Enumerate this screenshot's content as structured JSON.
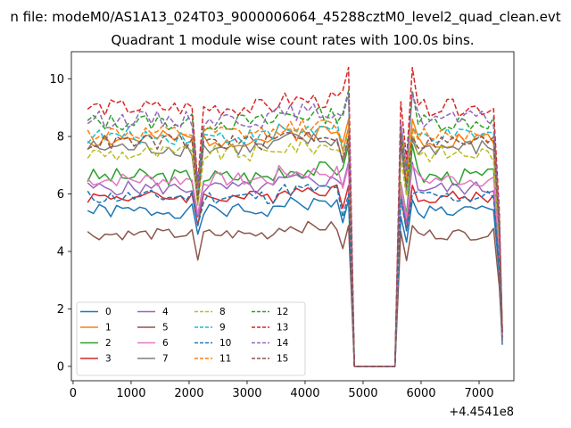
{
  "chart_data": {
    "type": "line",
    "suptitle": "n file: modeM0/AS1A13_024T03_9000006064_45288cztM0_level2_quad_clean.evt",
    "title": "Quadrant 1 module wise count rates with 100.0s bins.",
    "xlabel": "",
    "ylabel": "",
    "offset_text": "+4.4541e8",
    "xlim": [
      -30,
      7600
    ],
    "ylim": [
      -0.5,
      10.95
    ],
    "xticks": [
      0,
      1000,
      2000,
      3000,
      4000,
      5000,
      6000,
      7000
    ],
    "yticks": [
      0,
      2,
      4,
      6,
      8,
      10
    ],
    "grid": false,
    "legend": {
      "placement": "lower-left",
      "columns": 4
    },
    "x": [
      250,
      350,
      450,
      550,
      650,
      750,
      850,
      950,
      1050,
      1150,
      1250,
      1350,
      1450,
      1550,
      1650,
      1750,
      1850,
      1950,
      2050,
      2150,
      2250,
      2350,
      2450,
      2550,
      2650,
      2750,
      2850,
      2950,
      3050,
      3150,
      3250,
      3350,
      3450,
      3550,
      3650,
      3750,
      3850,
      3950,
      4050,
      4150,
      4250,
      4350,
      4450,
      4550,
      4650,
      4750,
      4850,
      5550,
      5650,
      5750,
      5850,
      5950,
      6050,
      6150,
      6250,
      6350,
      6450,
      6550,
      6650,
      6750,
      6850,
      6950,
      7050,
      7150,
      7250,
      7350,
      7400
    ],
    "gap_x": [
      4800,
      5550
    ],
    "series": [
      {
        "name": "0",
        "color": "#1f77b4",
        "dash": "solid",
        "base": 5.4,
        "spike": 5.8,
        "low": 4.6,
        "dip": 0.75,
        "noise": 0.25,
        "seed": 1
      },
      {
        "name": "1",
        "color": "#ff7f0e",
        "dash": "solid",
        "base": 7.9,
        "spike": 8.6,
        "low": 5.9,
        "dip": 1.2,
        "noise": 0.3,
        "seed": 2
      },
      {
        "name": "2",
        "color": "#2ca02c",
        "dash": "solid",
        "base": 6.6,
        "spike": 7.7,
        "low": 5.2,
        "dip": 1.1,
        "noise": 0.3,
        "seed": 3
      },
      {
        "name": "3",
        "color": "#d62728",
        "dash": "solid",
        "base": 5.9,
        "spike": 6.3,
        "low": 4.9,
        "dip": 1.0,
        "noise": 0.22,
        "seed": 4
      },
      {
        "name": "4",
        "color": "#9467bd",
        "dash": "solid",
        "base": 6.2,
        "spike": 7.1,
        "low": 5.2,
        "dip": 1.1,
        "noise": 0.25,
        "seed": 5
      },
      {
        "name": "5",
        "color": "#8c564b",
        "dash": "solid",
        "base": 4.6,
        "spike": 4.9,
        "low": 3.7,
        "dip": 0.9,
        "noise": 0.2,
        "seed": 6
      },
      {
        "name": "6",
        "color": "#e377c2",
        "dash": "solid",
        "base": 6.5,
        "spike": 7.0,
        "low": 5.3,
        "dip": 1.1,
        "noise": 0.25,
        "seed": 7
      },
      {
        "name": "7",
        "color": "#7f7f7f",
        "dash": "solid",
        "base": 7.6,
        "spike": 7.9,
        "low": 5.7,
        "dip": 1.2,
        "noise": 0.3,
        "seed": 8
      },
      {
        "name": "8",
        "color": "#bcbd22",
        "dash": "dashed",
        "base": 7.4,
        "spike": 8.2,
        "low": 5.6,
        "dip": 1.2,
        "noise": 0.3,
        "seed": 9
      },
      {
        "name": "9",
        "color": "#17becf",
        "dash": "dashed",
        "base": 8.0,
        "spike": 8.3,
        "low": 6.0,
        "dip": 1.2,
        "noise": 0.28,
        "seed": 10
      },
      {
        "name": "10",
        "color": "#1f77b4",
        "dash": "dashed",
        "base": 5.9,
        "spike": 6.0,
        "low": 4.9,
        "dip": 1.0,
        "noise": 0.25,
        "seed": 11
      },
      {
        "name": "11",
        "color": "#ff7f0e",
        "dash": "dashed",
        "base": 8.1,
        "spike": 8.3,
        "low": 6.1,
        "dip": 1.2,
        "noise": 0.28,
        "seed": 12
      },
      {
        "name": "12",
        "color": "#2ca02c",
        "dash": "dashed",
        "base": 8.5,
        "spike": 9.6,
        "low": 6.3,
        "dip": 1.2,
        "noise": 0.3,
        "seed": 13
      },
      {
        "name": "13",
        "color": "#d62728",
        "dash": "dashed",
        "base": 9.0,
        "spike": 10.4,
        "low": 6.4,
        "dip": 1.2,
        "noise": 0.3,
        "seed": 14
      },
      {
        "name": "14",
        "color": "#9467bd",
        "dash": "dashed",
        "base": 8.6,
        "spike": 9.5,
        "low": 6.3,
        "dip": 1.2,
        "noise": 0.3,
        "seed": 15
      },
      {
        "name": "15",
        "color": "#8c564b",
        "dash": "dashed",
        "base": 7.8,
        "spike": 8.0,
        "low": 5.8,
        "dip": 1.2,
        "noise": 0.28,
        "seed": 16
      }
    ]
  }
}
